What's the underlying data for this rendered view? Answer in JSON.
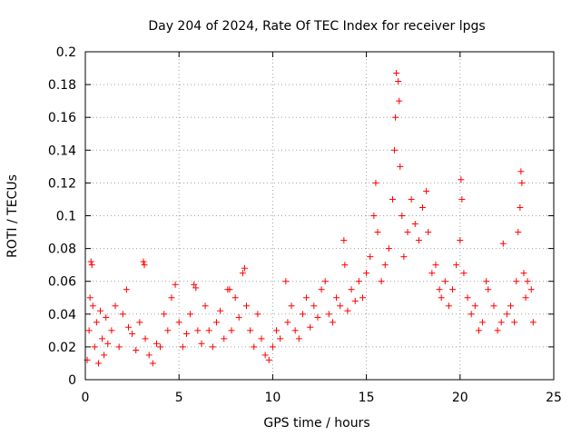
{
  "chart_data": {
    "type": "scatter",
    "title": "Day 204 of 2024, Rate Of TEC Index for receiver lpgs",
    "xlabel": "GPS time / hours",
    "ylabel": "ROTI / TECUs",
    "xlim": [
      0,
      25
    ],
    "ylim": [
      0,
      0.2
    ],
    "x_ticks": [
      "0",
      "5",
      "10",
      "15",
      "20",
      "25"
    ],
    "y_ticks": [
      "0",
      "0.02",
      "0.04",
      "0.06",
      "0.08",
      "0.1",
      "0.12",
      "0.14",
      "0.16",
      "0.18",
      "0.2"
    ],
    "grid": true,
    "marker": "+",
    "series": [
      {
        "name": "ROTI",
        "color": "#ff0000",
        "points": [
          [
            0.1,
            0.012
          ],
          [
            0.2,
            0.03
          ],
          [
            0.25,
            0.05
          ],
          [
            0.3,
            0.072
          ],
          [
            0.35,
            0.07
          ],
          [
            0.4,
            0.045
          ],
          [
            0.5,
            0.02
          ],
          [
            0.6,
            0.035
          ],
          [
            0.7,
            0.01
          ],
          [
            0.8,
            0.042
          ],
          [
            0.9,
            0.025
          ],
          [
            1.0,
            0.015
          ],
          [
            1.1,
            0.038
          ],
          [
            1.2,
            0.022
          ],
          [
            1.4,
            0.03
          ],
          [
            1.6,
            0.045
          ],
          [
            1.8,
            0.02
          ],
          [
            2.0,
            0.04
          ],
          [
            2.2,
            0.055
          ],
          [
            2.3,
            0.032
          ],
          [
            2.5,
            0.028
          ],
          [
            2.7,
            0.018
          ],
          [
            2.9,
            0.035
          ],
          [
            3.1,
            0.072
          ],
          [
            3.15,
            0.07
          ],
          [
            3.2,
            0.025
          ],
          [
            3.4,
            0.015
          ],
          [
            3.6,
            0.01
          ],
          [
            3.8,
            0.022
          ],
          [
            4.0,
            0.02
          ],
          [
            4.2,
            0.04
          ],
          [
            4.4,
            0.03
          ],
          [
            4.6,
            0.05
          ],
          [
            4.8,
            0.058
          ],
          [
            5.0,
            0.035
          ],
          [
            5.2,
            0.02
          ],
          [
            5.4,
            0.028
          ],
          [
            5.6,
            0.04
          ],
          [
            5.8,
            0.058
          ],
          [
            5.9,
            0.056
          ],
          [
            6.0,
            0.03
          ],
          [
            6.2,
            0.022
          ],
          [
            6.4,
            0.045
          ],
          [
            6.6,
            0.03
          ],
          [
            6.8,
            0.02
          ],
          [
            7.0,
            0.035
          ],
          [
            7.2,
            0.042
          ],
          [
            7.4,
            0.025
          ],
          [
            7.6,
            0.055
          ],
          [
            7.7,
            0.055
          ],
          [
            7.8,
            0.03
          ],
          [
            8.0,
            0.05
          ],
          [
            8.2,
            0.038
          ],
          [
            8.4,
            0.065
          ],
          [
            8.5,
            0.068
          ],
          [
            8.6,
            0.045
          ],
          [
            8.8,
            0.03
          ],
          [
            9.0,
            0.02
          ],
          [
            9.2,
            0.04
          ],
          [
            9.4,
            0.025
          ],
          [
            9.6,
            0.015
          ],
          [
            9.8,
            0.012
          ],
          [
            10.0,
            0.02
          ],
          [
            10.2,
            0.03
          ],
          [
            10.4,
            0.025
          ],
          [
            10.7,
            0.06
          ],
          [
            10.8,
            0.035
          ],
          [
            11.0,
            0.045
          ],
          [
            11.2,
            0.03
          ],
          [
            11.4,
            0.025
          ],
          [
            11.6,
            0.04
          ],
          [
            11.8,
            0.05
          ],
          [
            12.0,
            0.032
          ],
          [
            12.2,
            0.045
          ],
          [
            12.4,
            0.038
          ],
          [
            12.6,
            0.055
          ],
          [
            12.8,
            0.06
          ],
          [
            13.0,
            0.04
          ],
          [
            13.2,
            0.035
          ],
          [
            13.4,
            0.05
          ],
          [
            13.6,
            0.045
          ],
          [
            13.8,
            0.085
          ],
          [
            13.85,
            0.07
          ],
          [
            14.0,
            0.042
          ],
          [
            14.2,
            0.055
          ],
          [
            14.4,
            0.048
          ],
          [
            14.6,
            0.06
          ],
          [
            14.8,
            0.05
          ],
          [
            15.0,
            0.065
          ],
          [
            15.2,
            0.075
          ],
          [
            15.4,
            0.1
          ],
          [
            15.5,
            0.12
          ],
          [
            15.6,
            0.09
          ],
          [
            15.8,
            0.06
          ],
          [
            16.0,
            0.07
          ],
          [
            16.2,
            0.08
          ],
          [
            16.4,
            0.11
          ],
          [
            16.5,
            0.14
          ],
          [
            16.55,
            0.16
          ],
          [
            16.6,
            0.187
          ],
          [
            16.7,
            0.182
          ],
          [
            16.75,
            0.17
          ],
          [
            16.8,
            0.13
          ],
          [
            16.9,
            0.1
          ],
          [
            17.0,
            0.075
          ],
          [
            17.2,
            0.09
          ],
          [
            17.4,
            0.11
          ],
          [
            17.6,
            0.095
          ],
          [
            17.8,
            0.085
          ],
          [
            18.0,
            0.105
          ],
          [
            18.2,
            0.115
          ],
          [
            18.3,
            0.09
          ],
          [
            18.5,
            0.065
          ],
          [
            18.7,
            0.07
          ],
          [
            18.9,
            0.055
          ],
          [
            19.0,
            0.05
          ],
          [
            19.2,
            0.06
          ],
          [
            19.4,
            0.045
          ],
          [
            19.6,
            0.055
          ],
          [
            19.8,
            0.07
          ],
          [
            20.0,
            0.085
          ],
          [
            20.05,
            0.122
          ],
          [
            20.1,
            0.11
          ],
          [
            20.2,
            0.065
          ],
          [
            20.4,
            0.05
          ],
          [
            20.6,
            0.04
          ],
          [
            20.8,
            0.045
          ],
          [
            21.0,
            0.03
          ],
          [
            21.2,
            0.035
          ],
          [
            21.4,
            0.06
          ],
          [
            21.5,
            0.055
          ],
          [
            21.8,
            0.045
          ],
          [
            22.0,
            0.03
          ],
          [
            22.2,
            0.035
          ],
          [
            22.3,
            0.083
          ],
          [
            22.5,
            0.04
          ],
          [
            22.7,
            0.045
          ],
          [
            22.9,
            0.035
          ],
          [
            23.0,
            0.06
          ],
          [
            23.1,
            0.09
          ],
          [
            23.2,
            0.105
          ],
          [
            23.25,
            0.127
          ],
          [
            23.3,
            0.12
          ],
          [
            23.4,
            0.065
          ],
          [
            23.5,
            0.05
          ],
          [
            23.6,
            0.06
          ],
          [
            23.8,
            0.055
          ],
          [
            23.9,
            0.035
          ]
        ]
      }
    ]
  }
}
